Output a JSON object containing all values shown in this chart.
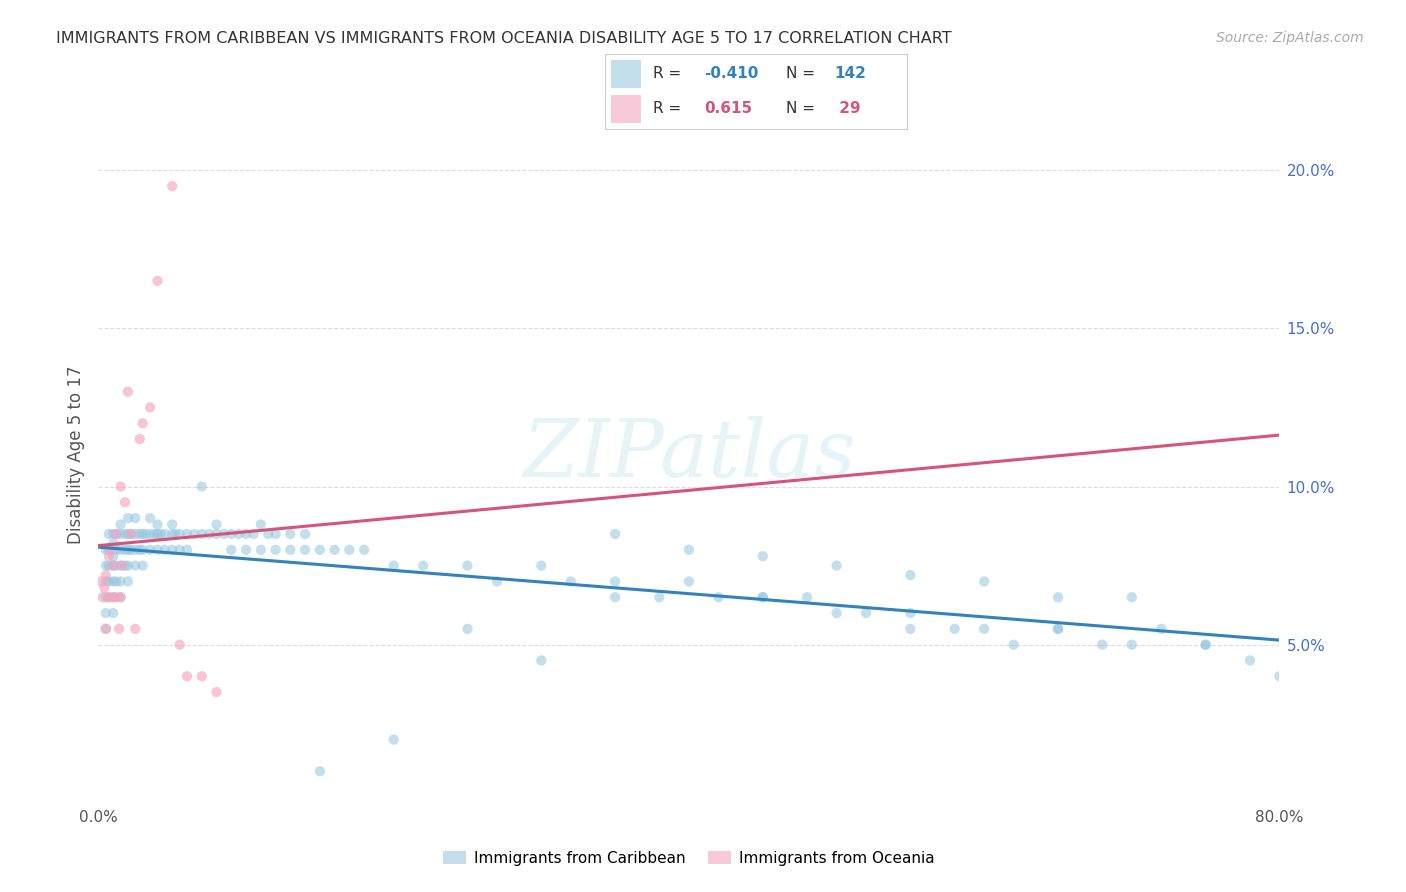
{
  "title": "IMMIGRANTS FROM CARIBBEAN VS IMMIGRANTS FROM OCEANIA DISABILITY AGE 5 TO 17 CORRELATION CHART",
  "source": "Source: ZipAtlas.com",
  "ylabel": "Disability Age 5 to 17",
  "xlim": [
    0.0,
    0.8
  ],
  "ylim": [
    0.0,
    0.22
  ],
  "R_blue": -0.41,
  "N_blue": 142,
  "R_pink": 0.615,
  "N_pink": 29,
  "blue_scatter_color": "#92c5de",
  "pink_scatter_color": "#f4a6c0",
  "blue_line_color": "#3182bd",
  "pink_line_color": "#d6537a",
  "legend_label_blue": "Immigrants from Caribbean",
  "legend_label_pink": "Immigrants from Oceania",
  "watermark": "ZIPatlas",
  "blue_x": [
    0.005,
    0.005,
    0.005,
    0.005,
    0.005,
    0.005,
    0.007,
    0.007,
    0.007,
    0.007,
    0.007,
    0.01,
    0.01,
    0.01,
    0.01,
    0.01,
    0.01,
    0.01,
    0.012,
    0.012,
    0.012,
    0.012,
    0.015,
    0.015,
    0.015,
    0.015,
    0.015,
    0.015,
    0.018,
    0.018,
    0.018,
    0.02,
    0.02,
    0.02,
    0.02,
    0.02,
    0.022,
    0.022,
    0.025,
    0.025,
    0.025,
    0.025,
    0.028,
    0.028,
    0.03,
    0.03,
    0.03,
    0.032,
    0.035,
    0.035,
    0.035,
    0.038,
    0.04,
    0.04,
    0.04,
    0.042,
    0.045,
    0.045,
    0.05,
    0.05,
    0.05,
    0.052,
    0.055,
    0.055,
    0.06,
    0.06,
    0.065,
    0.07,
    0.07,
    0.075,
    0.08,
    0.08,
    0.085,
    0.09,
    0.09,
    0.095,
    0.1,
    0.1,
    0.105,
    0.11,
    0.11,
    0.115,
    0.12,
    0.12,
    0.13,
    0.13,
    0.14,
    0.14,
    0.15,
    0.16,
    0.17,
    0.18,
    0.2,
    0.22,
    0.25,
    0.27,
    0.3,
    0.32,
    0.35,
    0.38,
    0.4,
    0.42,
    0.45,
    0.48,
    0.5,
    0.52,
    0.55,
    0.58,
    0.6,
    0.62,
    0.65,
    0.68,
    0.7,
    0.72,
    0.75,
    0.78,
    0.8,
    0.35,
    0.45,
    0.55,
    0.65,
    0.75,
    0.4,
    0.5,
    0.6,
    0.7,
    0.35,
    0.45,
    0.55,
    0.65,
    0.25,
    0.3,
    0.2,
    0.15
  ],
  "blue_y": [
    0.075,
    0.07,
    0.065,
    0.06,
    0.055,
    0.08,
    0.085,
    0.08,
    0.075,
    0.07,
    0.065,
    0.085,
    0.082,
    0.078,
    0.075,
    0.07,
    0.065,
    0.06,
    0.085,
    0.08,
    0.075,
    0.07,
    0.088,
    0.085,
    0.08,
    0.075,
    0.07,
    0.065,
    0.085,
    0.08,
    0.075,
    0.09,
    0.085,
    0.08,
    0.075,
    0.07,
    0.085,
    0.08,
    0.09,
    0.085,
    0.08,
    0.075,
    0.085,
    0.08,
    0.085,
    0.08,
    0.075,
    0.085,
    0.09,
    0.085,
    0.08,
    0.085,
    0.088,
    0.085,
    0.08,
    0.085,
    0.085,
    0.08,
    0.088,
    0.085,
    0.08,
    0.085,
    0.085,
    0.08,
    0.085,
    0.08,
    0.085,
    0.1,
    0.085,
    0.085,
    0.088,
    0.085,
    0.085,
    0.085,
    0.08,
    0.085,
    0.085,
    0.08,
    0.085,
    0.088,
    0.08,
    0.085,
    0.085,
    0.08,
    0.085,
    0.08,
    0.085,
    0.08,
    0.08,
    0.08,
    0.08,
    0.08,
    0.075,
    0.075,
    0.075,
    0.07,
    0.075,
    0.07,
    0.065,
    0.065,
    0.07,
    0.065,
    0.065,
    0.065,
    0.06,
    0.06,
    0.055,
    0.055,
    0.055,
    0.05,
    0.055,
    0.05,
    0.05,
    0.055,
    0.05,
    0.045,
    0.04,
    0.07,
    0.065,
    0.06,
    0.055,
    0.05,
    0.08,
    0.075,
    0.07,
    0.065,
    0.085,
    0.078,
    0.072,
    0.065,
    0.055,
    0.045,
    0.02,
    0.01
  ],
  "pink_x": [
    0.002,
    0.003,
    0.004,
    0.005,
    0.005,
    0.007,
    0.007,
    0.008,
    0.01,
    0.01,
    0.012,
    0.012,
    0.014,
    0.015,
    0.015,
    0.016,
    0.018,
    0.02,
    0.022,
    0.025,
    0.028,
    0.03,
    0.035,
    0.04,
    0.05,
    0.055,
    0.06,
    0.07,
    0.08
  ],
  "pink_y": [
    0.07,
    0.065,
    0.068,
    0.072,
    0.055,
    0.078,
    0.065,
    0.08,
    0.075,
    0.065,
    0.085,
    0.065,
    0.055,
    0.1,
    0.065,
    0.075,
    0.095,
    0.13,
    0.085,
    0.055,
    0.115,
    0.12,
    0.125,
    0.165,
    0.195,
    0.05,
    0.04,
    0.04,
    0.035
  ]
}
